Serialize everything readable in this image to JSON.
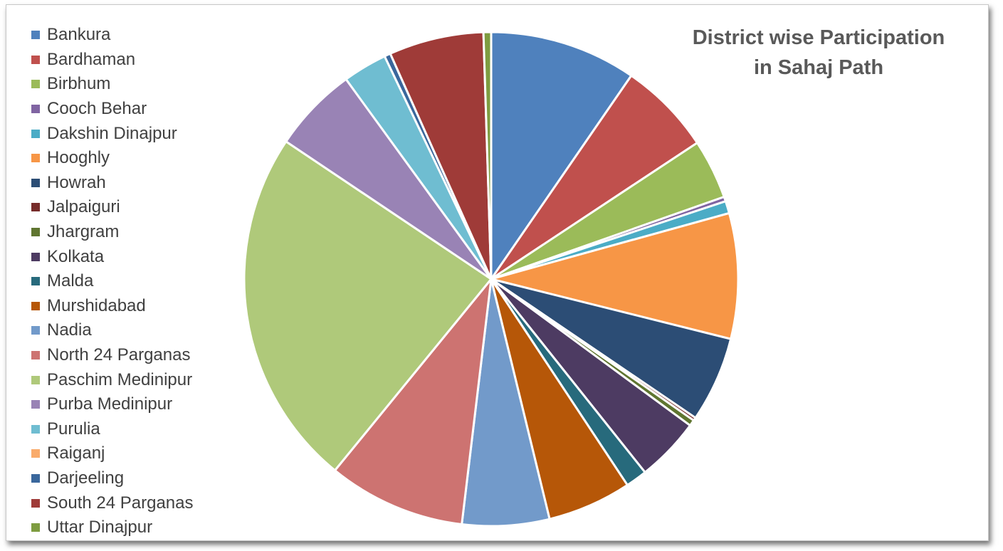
{
  "chart_data": {
    "type": "pie",
    "title_lines": [
      "District wise Participation",
      "in Sahaj Path"
    ],
    "legend_position": "left",
    "slices": [
      {
        "label": "Bankura",
        "value": 9.6,
        "color": "#4F81BD"
      },
      {
        "label": "Bardhaman",
        "value": 6.1,
        "color": "#C0504D"
      },
      {
        "label": "Birbhum",
        "value": 3.9,
        "color": "#9BBB59"
      },
      {
        "label": "Cooch Behar",
        "value": 0.3,
        "color": "#8064A2"
      },
      {
        "label": "Dakshin Dinajpur",
        "value": 0.8,
        "color": "#4BACC6"
      },
      {
        "label": "Hooghly",
        "value": 8.2,
        "color": "#F79646"
      },
      {
        "label": "Howrah",
        "value": 5.6,
        "color": "#2C4D75"
      },
      {
        "label": "Jalpaiguri",
        "value": 0.2,
        "color": "#772C2A"
      },
      {
        "label": "Jhargram",
        "value": 0.4,
        "color": "#5F7530"
      },
      {
        "label": "Kolkata",
        "value": 4.2,
        "color": "#4D3B62"
      },
      {
        "label": "Malda",
        "value": 1.4,
        "color": "#276A7C"
      },
      {
        "label": "Murshidabad",
        "value": 5.5,
        "color": "#B65708"
      },
      {
        "label": "Nadia",
        "value": 5.7,
        "color": "#729ACA"
      },
      {
        "label": "North 24 Parganas",
        "value": 9.0,
        "color": "#CD7371"
      },
      {
        "label": "Paschim Medinipur",
        "value": 23.5,
        "color": "#AFC97A"
      },
      {
        "label": "Purba Medinipur",
        "value": 5.6,
        "color": "#9983B5"
      },
      {
        "label": "Purulia",
        "value": 2.9,
        "color": "#6FBDD1"
      },
      {
        "label": "Raiganj",
        "value": 0.0,
        "color": "#F9AB6B"
      },
      {
        "label": "Darjeeling",
        "value": 0.4,
        "color": "#3A679C"
      },
      {
        "label": "South 24 Parganas",
        "value": 6.2,
        "color": "#9F3B38"
      },
      {
        "label": "Uttar Dinajpur",
        "value": 0.5,
        "color": "#7E9C40"
      }
    ]
  }
}
